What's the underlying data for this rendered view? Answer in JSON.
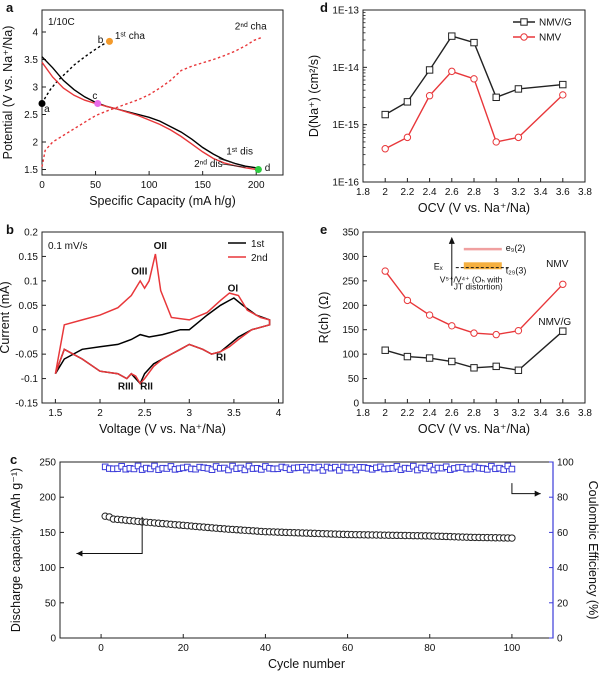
{
  "chart_data": [
    {
      "id": "a",
      "panel_label": "a",
      "type": "line",
      "note": "1/10C",
      "xlabel": "Specific Capacity (mA h/g)",
      "ylabel": "Potential (V vs. Na⁺/Na)",
      "xlim": [
        0,
        225
      ],
      "ylim": [
        1.4,
        4.4
      ],
      "xticks": [
        0,
        50,
        100,
        150,
        200
      ],
      "yticks": [
        1.5,
        2.0,
        2.5,
        3.0,
        3.5,
        4.0
      ],
      "series": [
        {
          "name": "1st cha",
          "color": "#000000",
          "dash": true,
          "x": [
            0,
            4,
            8,
            14,
            22,
            30,
            40,
            48,
            55,
            62
          ],
          "y": [
            2.7,
            2.84,
            2.96,
            3.1,
            3.25,
            3.4,
            3.55,
            3.66,
            3.75,
            3.83
          ]
        },
        {
          "name": "1st dis",
          "color": "#000000",
          "dash": false,
          "x": [
            0,
            10,
            20,
            30,
            40,
            50,
            60,
            70,
            80,
            90,
            100,
            110,
            120,
            130,
            140,
            150,
            160,
            170,
            180,
            190,
            200,
            205
          ],
          "y": [
            3.55,
            3.35,
            3.12,
            2.95,
            2.82,
            2.72,
            2.65,
            2.6,
            2.55,
            2.5,
            2.45,
            2.38,
            2.28,
            2.18,
            2.05,
            1.9,
            1.78,
            1.68,
            1.61,
            1.56,
            1.53,
            1.5
          ]
        },
        {
          "name": "2nd cha",
          "color": "#e8373a",
          "dash": true,
          "x": [
            0,
            3,
            10,
            20,
            30,
            40,
            50,
            60,
            70,
            80,
            90,
            100,
            110,
            120,
            130,
            140,
            150,
            160,
            170,
            180,
            190,
            198,
            205
          ],
          "y": [
            1.55,
            1.85,
            2.0,
            2.12,
            2.24,
            2.36,
            2.48,
            2.56,
            2.63,
            2.7,
            2.77,
            2.86,
            2.98,
            3.12,
            3.3,
            3.38,
            3.44,
            3.5,
            3.57,
            3.65,
            3.75,
            3.85,
            3.9
          ]
        },
        {
          "name": "2nd dis",
          "color": "#e8373a",
          "dash": false,
          "x": [
            0,
            10,
            20,
            30,
            40,
            50,
            60,
            70,
            80,
            90,
            100,
            110,
            120,
            130,
            140,
            150,
            160,
            170,
            180,
            190,
            200
          ],
          "y": [
            3.45,
            3.18,
            2.98,
            2.85,
            2.76,
            2.7,
            2.65,
            2.6,
            2.54,
            2.48,
            2.4,
            2.32,
            2.22,
            2.1,
            1.96,
            1.82,
            1.7,
            1.62,
            1.57,
            1.53,
            1.5
          ]
        }
      ],
      "annotations": {
        "a_label": "a",
        "b_label": "b",
        "c_label": "c",
        "d_label": "d",
        "cha1": "1ˢᵗ cha",
        "cha2": "2ⁿᵈ cha",
        "dis1": "1ˢᵗ dis",
        "dis2": "2ⁿᵈ dis"
      },
      "markers": [
        {
          "x": 0,
          "y": 2.7,
          "color": "#000000"
        },
        {
          "x": 63,
          "y": 3.83,
          "color": "#f39a2b"
        },
        {
          "x": 52,
          "y": 2.7,
          "color": "#e86ae8"
        },
        {
          "x": 202,
          "y": 1.5,
          "color": "#2ecc40"
        }
      ]
    },
    {
      "id": "b",
      "panel_label": "b",
      "type": "line",
      "note": "0.1 mV/s",
      "xlabel": "Voltage (V vs. Na⁺/Na)",
      "ylabel": "Current (mA)",
      "xlim": [
        1.35,
        4.05
      ],
      "ylim": [
        -0.15,
        0.2
      ],
      "xticks": [
        1.5,
        2.0,
        2.5,
        3.0,
        3.5,
        4.0
      ],
      "yticks": [
        -0.15,
        -0.1,
        -0.05,
        0.0,
        0.05,
        0.1,
        0.15,
        0.2
      ],
      "legend": [
        "1st",
        "2nd"
      ],
      "legend_position": "top-right",
      "series": [
        {
          "name": "1st",
          "color": "#000000",
          "x": [
            1.5,
            1.6,
            1.8,
            2.0,
            2.2,
            2.35,
            2.45,
            2.55,
            2.7,
            2.9,
            3.0,
            3.1,
            3.2,
            3.35,
            3.45,
            3.5,
            3.6,
            3.75,
            3.9,
            3.9,
            3.7,
            3.55,
            3.45,
            3.35,
            3.25,
            3.15,
            3.0,
            2.9,
            2.8,
            2.7,
            2.6,
            2.5,
            2.45,
            2.4,
            2.35,
            2.3,
            2.2,
            2.0,
            1.8,
            1.6,
            1.5
          ],
          "y": [
            -0.09,
            -0.06,
            -0.04,
            -0.035,
            -0.03,
            -0.02,
            -0.01,
            -0.015,
            -0.01,
            0.0,
            0.0,
            0.015,
            0.03,
            0.05,
            0.06,
            0.065,
            0.05,
            0.03,
            0.02,
            0.01,
            0.0,
            -0.015,
            -0.03,
            -0.045,
            -0.05,
            -0.04,
            -0.03,
            -0.04,
            -0.05,
            -0.06,
            -0.07,
            -0.09,
            -0.11,
            -0.1,
            -0.09,
            -0.1,
            -0.09,
            -0.085,
            -0.06,
            -0.04,
            -0.09
          ]
        },
        {
          "name": "2nd",
          "color": "#e8373a",
          "x": [
            1.5,
            1.6,
            1.8,
            2.0,
            2.2,
            2.35,
            2.45,
            2.5,
            2.55,
            2.62,
            2.68,
            2.8,
            3.0,
            3.2,
            3.35,
            3.45,
            3.55,
            3.65,
            3.8,
            3.9,
            3.9,
            3.7,
            3.55,
            3.45,
            3.35,
            3.25,
            3.15,
            3.0,
            2.9,
            2.8,
            2.7,
            2.6,
            2.5,
            2.45,
            2.4,
            2.35,
            2.3,
            2.2,
            2.0,
            1.8,
            1.6,
            1.5
          ],
          "y": [
            -0.09,
            0.01,
            0.02,
            0.03,
            0.045,
            0.07,
            0.1,
            0.085,
            0.1,
            0.155,
            0.08,
            0.025,
            0.02,
            0.035,
            0.06,
            0.075,
            0.07,
            0.04,
            0.025,
            0.02,
            0.01,
            0.0,
            -0.02,
            -0.035,
            -0.045,
            -0.05,
            -0.04,
            -0.03,
            -0.04,
            -0.05,
            -0.06,
            -0.075,
            -0.1,
            -0.11,
            -0.095,
            -0.09,
            -0.1,
            -0.09,
            -0.085,
            -0.06,
            -0.04,
            -0.09
          ]
        }
      ],
      "peak_labels": [
        "OI",
        "OII",
        "OIII",
        "RI",
        "RII",
        "RIII"
      ]
    },
    {
      "id": "c",
      "panel_label": "c",
      "type": "scatter",
      "xlabel": "Cycle number",
      "ylabel": "Discharge capacity (mAh g⁻¹)",
      "ylabel_right": "Coulombic Efficiency (%)",
      "xlim": [
        -10,
        110
      ],
      "ylim": [
        0,
        250
      ],
      "ylim_right": [
        0,
        100
      ],
      "xticks": [
        0,
        20,
        40,
        60,
        80,
        100
      ],
      "yticks": [
        0,
        50,
        100,
        150,
        200,
        250
      ],
      "yticks_right": [
        0,
        20,
        40,
        60,
        80,
        100
      ],
      "series": [
        {
          "name": "Discharge capacity",
          "axis": "left",
          "color": "#222222",
          "marker": "circle",
          "x_start": 1,
          "x_end": 100,
          "anchors_x": [
            1,
            2,
            3,
            5,
            10,
            20,
            30,
            40,
            50,
            60,
            70,
            80,
            90,
            100
          ],
          "anchors_y": [
            173,
            172,
            169,
            168,
            165,
            160,
            155,
            151,
            149,
            147,
            146,
            145,
            143,
            142
          ]
        },
        {
          "name": "Coulombic Efficiency",
          "axis": "right",
          "color": "#3b3bd9",
          "marker": "square",
          "x_start": 1,
          "x_end": 100,
          "mean": 96.5,
          "jitter": 1.3
        }
      ]
    },
    {
      "id": "d",
      "panel_label": "d",
      "type": "line",
      "xlabel": "OCV (V vs. Na⁺/Na)",
      "ylabel": "D(Na⁺) (cm²/s)",
      "yscale": "log",
      "xlim": [
        1.8,
        3.8
      ],
      "ylim": [
        1e-16,
        1e-13
      ],
      "xticks": [
        1.8,
        2.0,
        2.2,
        2.4,
        2.6,
        2.8,
        3.0,
        3.2,
        3.4,
        3.6,
        3.8
      ],
      "yticks": [
        "1E-16",
        "1E-15",
        "1E-14",
        "1E-13"
      ],
      "legend": [
        "NMV/G",
        "NMV"
      ],
      "legend_position": "top-left",
      "series": [
        {
          "name": "NMV/G",
          "color": "#222222",
          "marker": "square",
          "x": [
            2.0,
            2.2,
            2.4,
            2.6,
            2.8,
            3.0,
            3.2,
            3.6
          ],
          "y": [
            1.5e-15,
            2.5e-15,
            9e-15,
            3.5e-14,
            2.7e-14,
            3e-15,
            4.2e-15,
            5e-15
          ]
        },
        {
          "name": "NMV",
          "color": "#e8373a",
          "marker": "circle",
          "x": [
            2.0,
            2.2,
            2.4,
            2.6,
            2.8,
            3.0,
            3.2,
            3.6
          ],
          "y": [
            3.8e-16,
            6e-16,
            3.2e-15,
            8.5e-15,
            6.3e-15,
            5e-16,
            6e-16,
            3.3e-15
          ]
        }
      ]
    },
    {
      "id": "e",
      "panel_label": "e",
      "type": "line",
      "xlabel": "OCV (V vs. Na⁺/Na)",
      "ylabel": "R(ch) (Ω)",
      "xlim": [
        1.8,
        3.8
      ],
      "ylim": [
        0,
        350
      ],
      "xticks": [
        1.8,
        2.0,
        2.2,
        2.4,
        2.6,
        2.8,
        3.0,
        3.2,
        3.4,
        3.6,
        3.8
      ],
      "yticks": [
        0,
        50,
        100,
        150,
        200,
        250,
        300,
        350
      ],
      "series": [
        {
          "name": "NMV",
          "color": "#e8373a",
          "marker": "circle",
          "x": [
            2.0,
            2.2,
            2.4,
            2.6,
            2.8,
            3.0,
            3.2,
            3.6
          ],
          "y": [
            270,
            210,
            180,
            158,
            143,
            140,
            148,
            243
          ]
        },
        {
          "name": "NMV/G",
          "color": "#222222",
          "marker": "square",
          "x": [
            2.0,
            2.2,
            2.4,
            2.6,
            2.8,
            3.0,
            3.2,
            3.6
          ],
          "y": [
            108,
            95,
            92,
            85,
            72,
            75,
            67,
            147
          ]
        }
      ],
      "labels": {
        "nmv": "NMV",
        "nmvg": "NMV/G"
      },
      "inset": {
        "ef": "Eₓ",
        "eg": "e₉(2)",
        "t2g": "t₂₉(3)",
        "line1": "V⁵⁺/V⁴⁺ (Oₕ with",
        "line2": "JT distortion)"
      }
    }
  ]
}
